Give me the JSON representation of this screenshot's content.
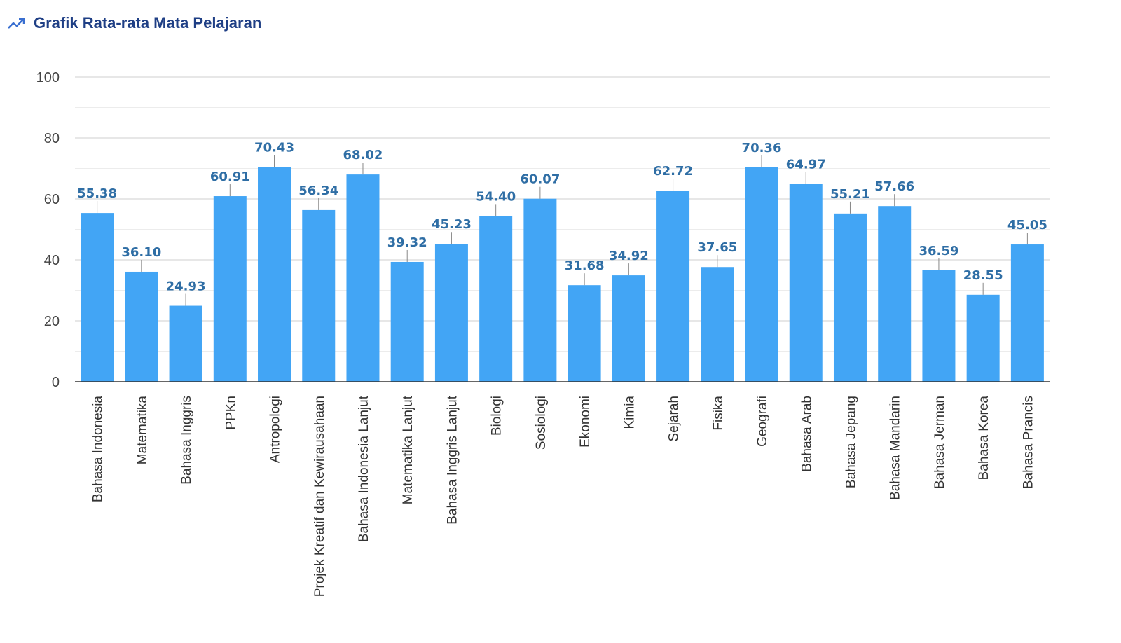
{
  "title": "Grafik Rata-rata Mata Pelajaran",
  "title_icon": "trending-up-icon",
  "colors": {
    "bar": "#42a5f5",
    "label": "#2f6ea5",
    "title": "#1f3f85",
    "icon": "#3a6fd0"
  },
  "chart_data": {
    "type": "bar",
    "title": "Grafik Rata-rata Mata Pelajaran",
    "xlabel": "",
    "ylabel": "",
    "ylim": [
      0,
      100
    ],
    "yticks": [
      "0",
      "20",
      "40",
      "60",
      "80",
      "100"
    ],
    "grid": true,
    "categories": [
      "Bahasa Indonesia",
      "Matematika",
      "Bahasa Inggris",
      "PPKn",
      "Antropologi",
      "Projek Kreatif dan Kewirausahaan",
      "Bahasa Indonesia Lanjut",
      "Matematika Lanjut",
      "Bahasa Inggris Lanjut",
      "Biologi",
      "Sosiologi",
      "Ekonomi",
      "Kimia",
      "Sejarah",
      "Fisika",
      "Geografi",
      "Bahasa Arab",
      "Bahasa Jepang",
      "Bahasa Mandarin",
      "Bahasa Jerman",
      "Bahasa Korea",
      "Bahasa Prancis"
    ],
    "values": [
      55.38,
      36.1,
      24.93,
      60.91,
      70.43,
      56.34,
      68.02,
      39.32,
      45.23,
      54.4,
      60.07,
      31.68,
      34.92,
      62.72,
      37.65,
      70.36,
      64.97,
      55.21,
      57.66,
      36.59,
      28.55,
      45.05
    ],
    "value_labels": [
      "55.38",
      "36.10",
      "24.93",
      "60.91",
      "70.43",
      "56.34",
      "68.02",
      "39.32",
      "45.23",
      "54.40",
      "60.07",
      "31.68",
      "34.92",
      "62.72",
      "37.65",
      "70.36",
      "64.97",
      "55.21",
      "57.66",
      "36.59",
      "28.55",
      "45.05"
    ]
  }
}
